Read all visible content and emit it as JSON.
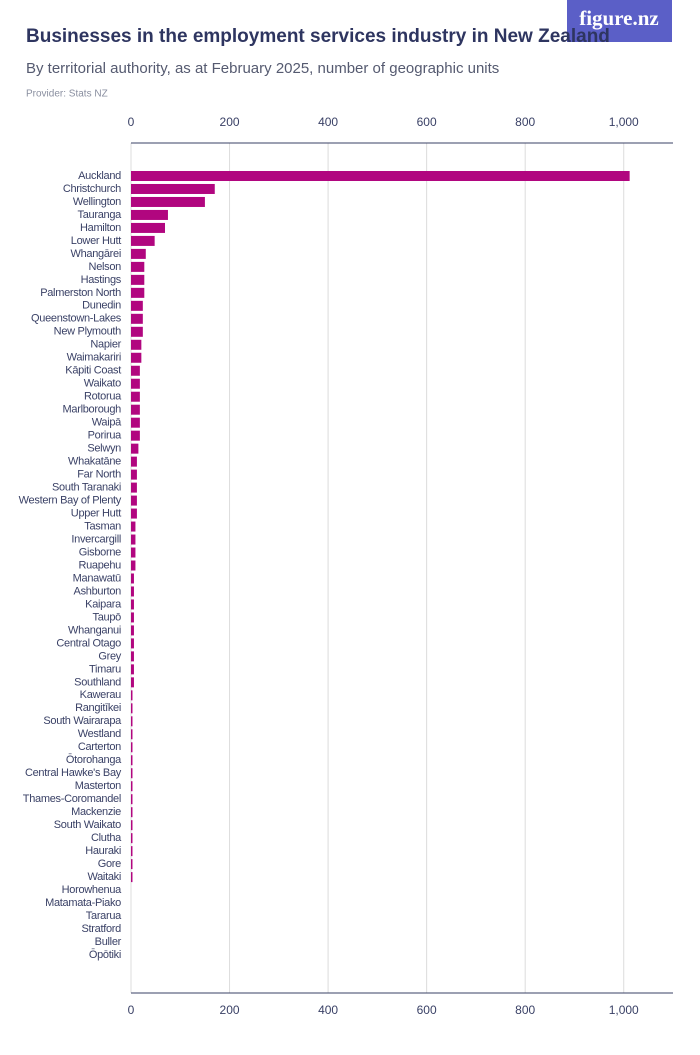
{
  "logo": "figure.nz",
  "chart_data": {
    "type": "hbar",
    "title": "Businesses in the employment services industry in New Zealand",
    "subtitle": "By territorial authority, as at February 2025, number of geographic units",
    "provider": "Provider: Stats NZ",
    "color": "#b1067f",
    "grid": true,
    "xlim": [
      0,
      1100
    ],
    "xticks": [
      0,
      200,
      400,
      600,
      800,
      {
        "value": 1000,
        "label": "1,000"
      }
    ],
    "categories": [
      "Auckland",
      "Christchurch",
      "Wellington",
      "Tauranga",
      "Hamilton",
      "Lower Hutt",
      "Whangārei",
      "Nelson",
      "Hastings",
      "Palmerston North",
      "Dunedin",
      "Queenstown-Lakes",
      "New Plymouth",
      "Napier",
      "Waimakariri",
      "Kāpiti Coast",
      "Waikato",
      "Rotorua",
      "Marlborough",
      "Waipā",
      "Porirua",
      "Selwyn",
      "Whakatāne",
      "Far North",
      "South Taranaki",
      "Western Bay of Plenty",
      "Upper Hutt",
      "Tasman",
      "Invercargill",
      "Gisborne",
      "Ruapehu",
      "Manawatū",
      "Ashburton",
      "Kaipara",
      "Taupō",
      "Whanganui",
      "Central Otago",
      "Grey",
      "Timaru",
      "Southland",
      "Kawerau",
      "Rangitīkei",
      "South Wairarapa",
      "Westland",
      "Carterton",
      "Ōtorohanga",
      "Central Hawke's Bay",
      "Masterton",
      "Thames-Coromandel",
      "Mackenzie",
      "South Waikato",
      "Clutha",
      "Hauraki",
      "Gore",
      "Waitaki",
      "Horowhenua",
      "Matamata-Piako",
      "Tararua",
      "Stratford",
      "Buller",
      "Ōpōtiki"
    ],
    "values": [
      1012,
      170,
      150,
      75,
      69,
      48,
      30,
      27,
      27,
      27,
      24,
      24,
      24,
      21,
      21,
      18,
      18,
      18,
      18,
      18,
      18,
      15,
      12,
      12,
      12,
      12,
      12,
      9,
      9,
      9,
      9,
      6,
      6,
      6,
      6,
      6,
      6,
      6,
      6,
      6,
      3,
      3,
      3,
      3,
      3,
      3,
      3,
      3,
      3,
      3,
      3,
      3,
      3,
      3,
      3,
      0,
      0,
      0,
      0,
      0,
      0
    ]
  }
}
